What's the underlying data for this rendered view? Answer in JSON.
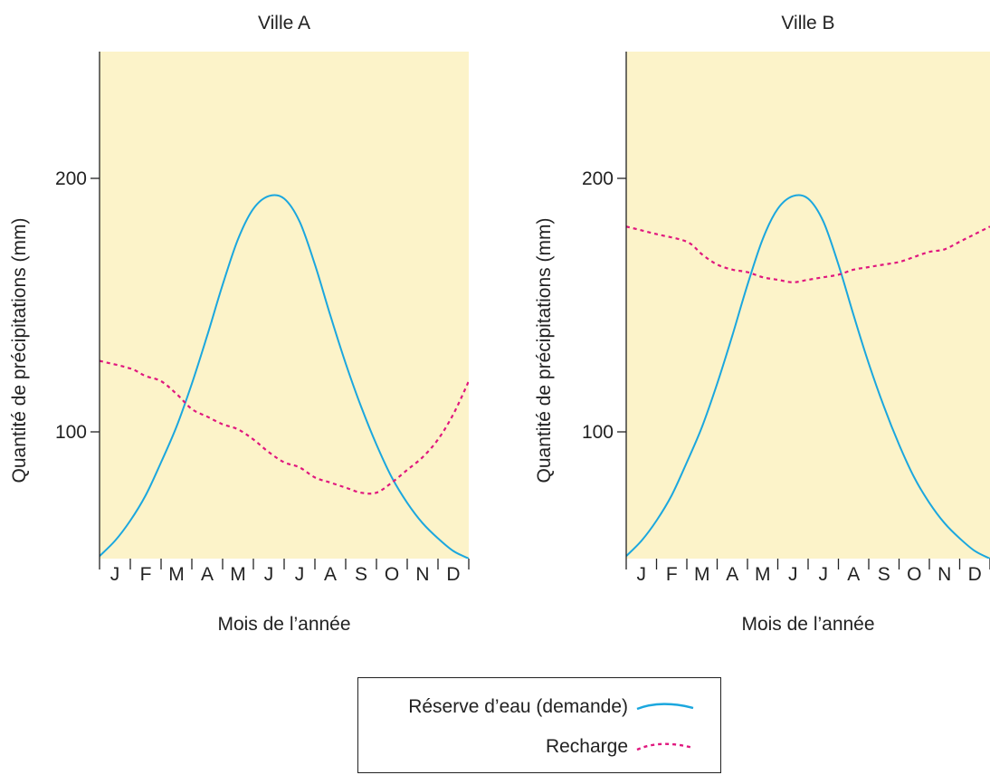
{
  "colors": {
    "plot_background": "#fcf3c9",
    "reserve_line": "#1ba7de",
    "recharge_line": "#e0177e",
    "axis": "#222222"
  },
  "legend": {
    "reserve_label": "Réserve d’eau (demande)",
    "recharge_label": "Recharge"
  },
  "chart_data": [
    {
      "type": "line",
      "title": "Ville A",
      "xlabel": "Mois de l’année",
      "ylabel": "Quantité de précipitations (mm)",
      "categories": [
        "J",
        "F",
        "M",
        "A",
        "M",
        "J",
        "J",
        "A",
        "S",
        "O",
        "N",
        "D"
      ],
      "yticks": [
        100,
        200
      ],
      "ylim": [
        50,
        250
      ],
      "grid": false,
      "series": [
        {
          "key": "reserve",
          "x": [
            0,
            0.5,
            1,
            1.5,
            2,
            2.5,
            3,
            3.5,
            4,
            4.5,
            5,
            5.5,
            6,
            6.5,
            7,
            7.5,
            8,
            8.5,
            9,
            9.5,
            10,
            10.5,
            11,
            11.5,
            12
          ],
          "y": [
            51,
            57,
            65,
            75,
            88,
            102,
            119,
            138,
            158,
            176,
            188,
            193,
            192,
            183,
            166,
            146,
            127,
            110,
            95,
            82,
            72,
            64,
            58,
            53,
            50
          ]
        },
        {
          "key": "recharge",
          "x": [
            0,
            1,
            1.5,
            2,
            2.5,
            3,
            3.5,
            4,
            4.5,
            5,
            5.5,
            6,
            6.5,
            7,
            7.5,
            8,
            8.5,
            9,
            9.5,
            10,
            10.5,
            11,
            11.5,
            12
          ],
          "y": [
            128,
            125,
            122,
            120,
            115,
            109,
            106,
            103,
            101,
            97,
            92,
            88,
            86,
            82,
            80,
            78,
            76,
            76,
            80,
            85,
            90,
            97,
            107,
            120
          ]
        }
      ]
    },
    {
      "type": "line",
      "title": "Ville B",
      "xlabel": "Mois de l’année",
      "ylabel": "Quantité de précipitations (mm)",
      "categories": [
        "J",
        "F",
        "M",
        "A",
        "M",
        "J",
        "J",
        "A",
        "S",
        "O",
        "N",
        "D"
      ],
      "yticks": [
        100,
        200
      ],
      "ylim": [
        50,
        250
      ],
      "grid": false,
      "series": [
        {
          "key": "reserve",
          "x": [
            0,
            0.5,
            1,
            1.5,
            2,
            2.5,
            3,
            3.5,
            4,
            4.5,
            5,
            5.5,
            6,
            6.5,
            7,
            7.5,
            8,
            8.5,
            9,
            9.5,
            10,
            10.5,
            11,
            11.5,
            12
          ],
          "y": [
            51,
            57,
            65,
            75,
            88,
            102,
            119,
            138,
            158,
            176,
            188,
            193,
            192,
            183,
            166,
            146,
            127,
            110,
            95,
            82,
            72,
            64,
            58,
            53,
            50
          ]
        },
        {
          "key": "recharge",
          "x": [
            0,
            1,
            2,
            2.5,
            3,
            3.5,
            4,
            4.5,
            5,
            5.5,
            6,
            6.5,
            7,
            7.5,
            8,
            8.5,
            9,
            9.5,
            10,
            10.5,
            11,
            11.5,
            12
          ],
          "y": [
            181,
            178,
            175,
            170,
            166,
            164,
            163,
            161,
            160,
            159,
            160,
            161,
            162,
            164,
            165,
            166,
            167,
            169,
            171,
            172,
            175,
            178,
            181
          ]
        }
      ]
    }
  ]
}
